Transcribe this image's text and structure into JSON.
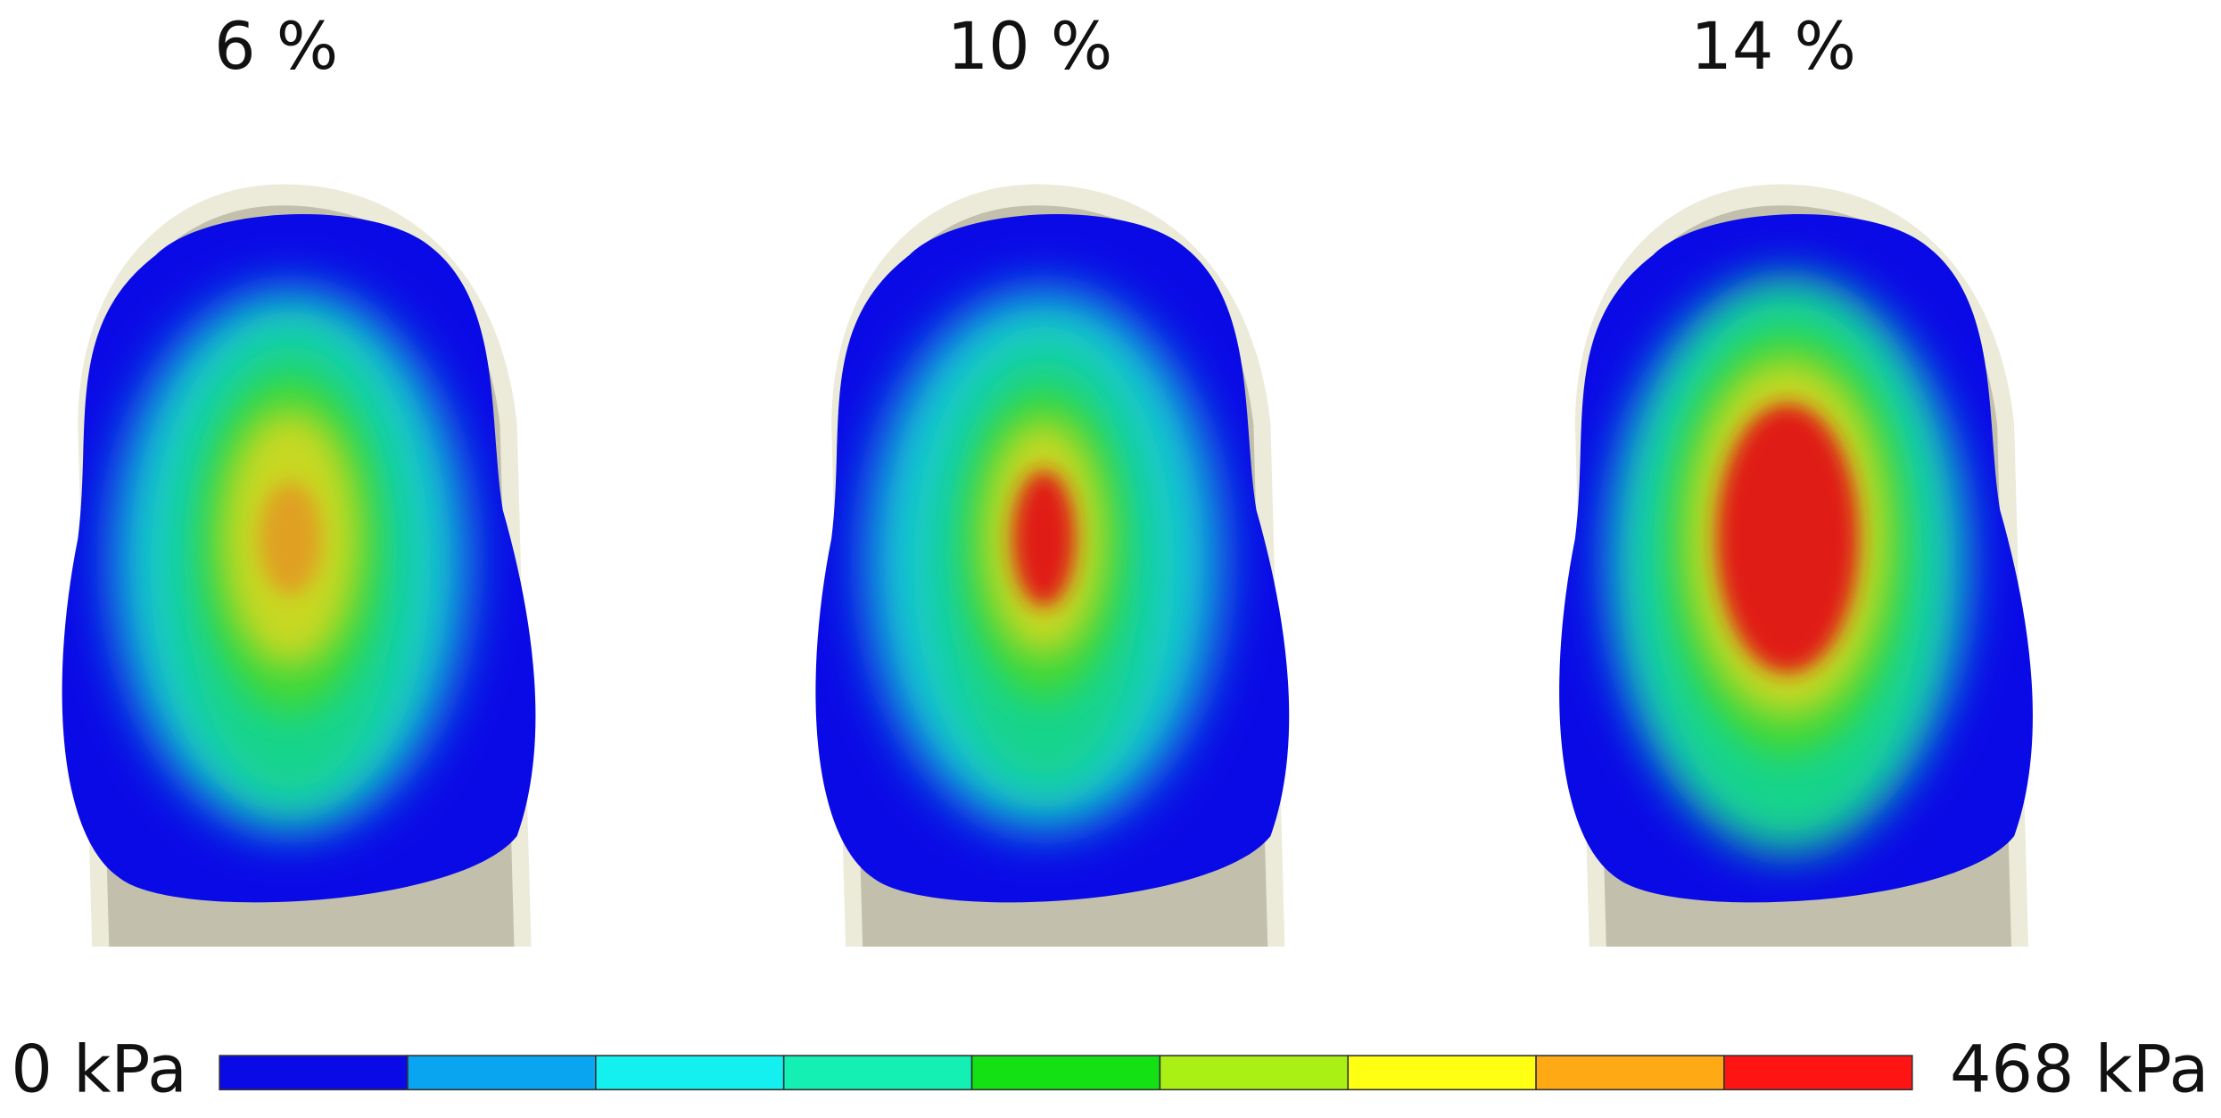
{
  "panels": [
    {
      "title": "6 %"
    },
    {
      "title": "10 %"
    },
    {
      "title": "14 %"
    }
  ],
  "colorbar": {
    "min_label": "0 kPa",
    "max_label": "468 kPa",
    "colors": [
      "#0a0ae6",
      "#0aa5f0",
      "#14f0f0",
      "#14f0b4",
      "#14e114",
      "#aaf014",
      "#ffff14",
      "#ffaa14",
      "#ff1414"
    ]
  }
}
